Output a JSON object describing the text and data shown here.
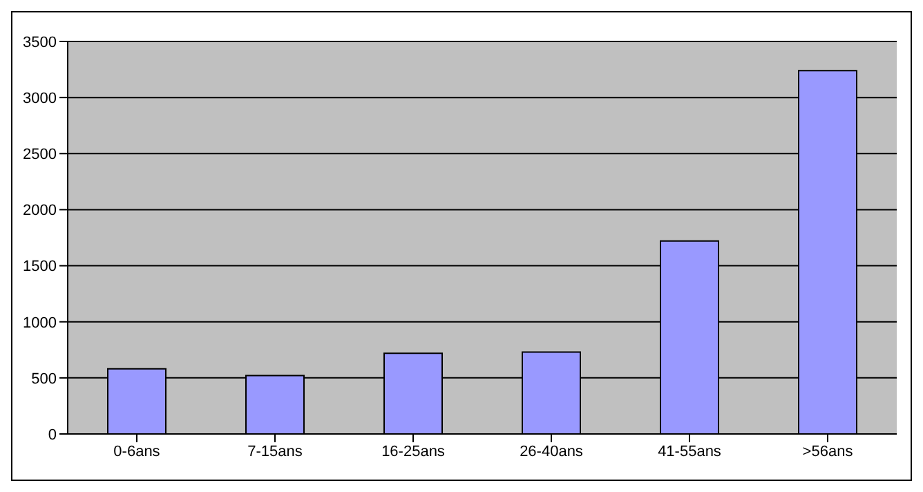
{
  "chart_data": {
    "type": "bar",
    "categories": [
      "0-6ans",
      "7-15ans",
      "16-25ans",
      "26-40ans",
      "41-55ans",
      ">56ans"
    ],
    "values": [
      580,
      520,
      720,
      730,
      1720,
      3240
    ],
    "color": "#9999ff",
    "ylim": [
      0,
      3500
    ],
    "yticks": [
      0,
      500,
      1000,
      1500,
      2000,
      2500,
      3000,
      3500
    ],
    "grid": "y"
  }
}
